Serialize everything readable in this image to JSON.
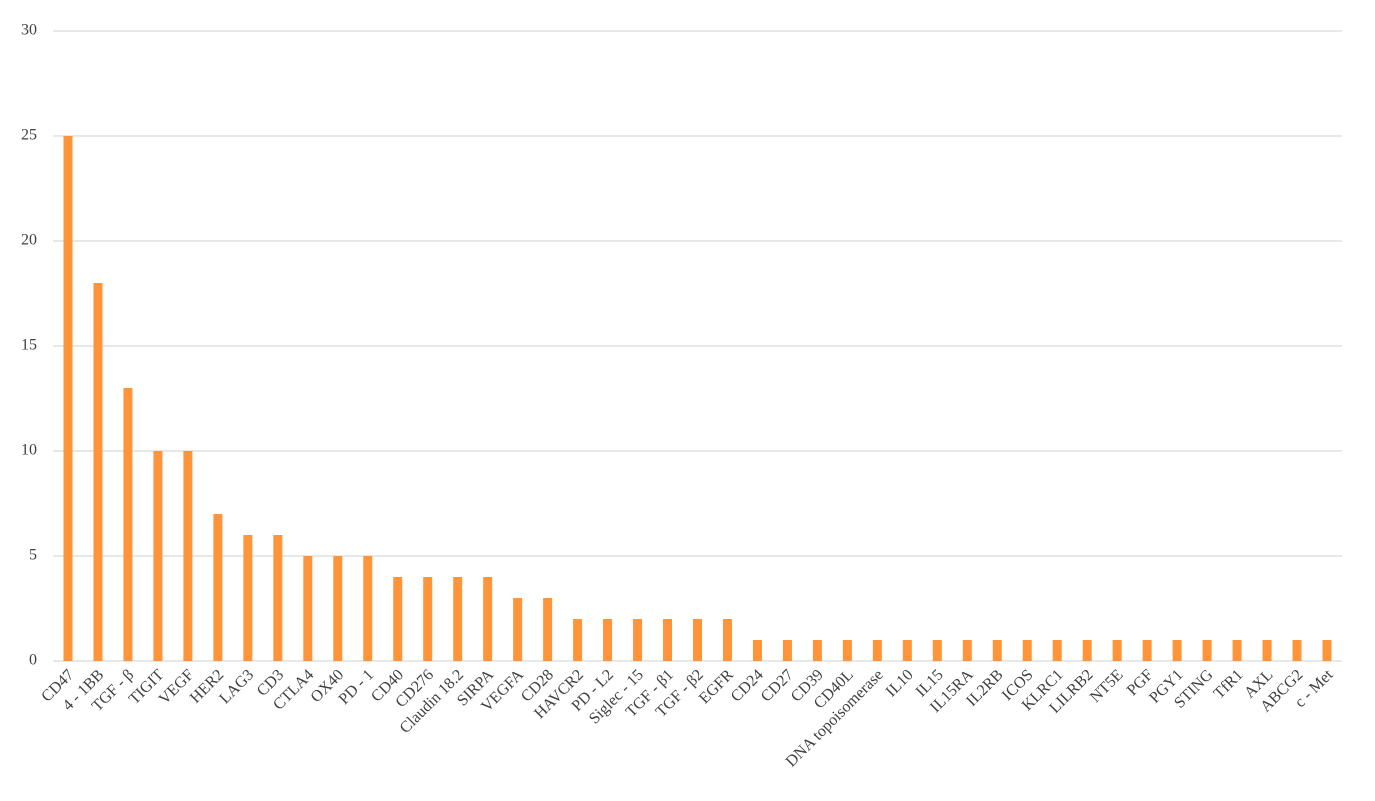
{
  "chart_data": {
    "type": "bar",
    "categories": [
      "CD47",
      "4 - 1BB",
      "TGF - β",
      "TIGIT",
      "VEGF",
      "HER2",
      "LAG3",
      "CD3",
      "CTLA4",
      "OX40",
      "PD - 1",
      "CD40",
      "CD276",
      "Claudin 18.2",
      "SIRPA",
      "VEGFA",
      "CD28",
      "HAVCR2",
      "PD - L2",
      "Siglec - 15",
      "TGF - β1",
      "TGF - β2",
      "EGFR",
      "CD24",
      "CD27",
      "CD39",
      "CD40L",
      "DNA topoisomerase",
      "IL10",
      "IL15",
      "IL15RA",
      "IL2RB",
      "ICOS",
      "KLRC1",
      "LILRB2",
      "NT5E",
      "PGF",
      "PGY1",
      "STING",
      "TfR1",
      "AXL",
      "ABCG2",
      "c - Met"
    ],
    "values": [
      25,
      18,
      13,
      10,
      10,
      7,
      6,
      6,
      5,
      5,
      5,
      4,
      4,
      4,
      4,
      3,
      3,
      2,
      2,
      2,
      2,
      2,
      2,
      1,
      1,
      1,
      1,
      1,
      1,
      1,
      1,
      1,
      1,
      1,
      1,
      1,
      1,
      1,
      1,
      1,
      1,
      1,
      1
    ],
    "color": "#ff943a",
    "ylim": [
      0,
      30
    ],
    "yticks": [
      0,
      5,
      10,
      15,
      20,
      25,
      30
    ],
    "grid": true
  }
}
